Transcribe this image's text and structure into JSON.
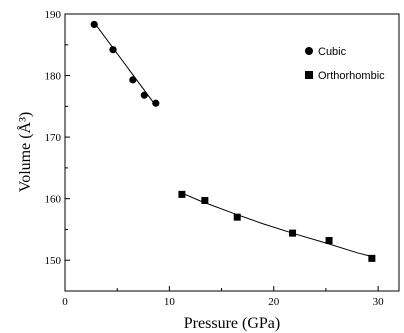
{
  "chart_data": {
    "type": "scatter",
    "xlabel": "Pressure (GPa)",
    "ylabel": "Volume (Å³)",
    "xlim": [
      0,
      32
    ],
    "ylim": [
      145,
      190
    ],
    "xticks": [
      0,
      10,
      20,
      30
    ],
    "yticks": [
      150,
      160,
      170,
      180,
      190
    ],
    "grid": false,
    "legend_position": "top-right",
    "series": [
      {
        "name": "Cubic",
        "marker": "circle",
        "x": [
          2.8,
          4.6,
          6.5,
          7.6,
          8.7
        ],
        "y": [
          188.3,
          184.2,
          179.3,
          176.8,
          175.5
        ],
        "fit_x": [
          2.8,
          8.7
        ],
        "fit_y": [
          188.6,
          175.1
        ]
      },
      {
        "name": "Orthorhombic",
        "marker": "square",
        "x": [
          11.2,
          13.4,
          16.5,
          21.8,
          25.3,
          29.4
        ],
        "y": [
          160.7,
          159.7,
          157.0,
          154.4,
          153.2,
          150.3
        ],
        "fit_x": [
          11.2,
          13.0,
          16.0,
          19.0,
          22.0,
          25.0,
          28.0,
          29.4
        ],
        "fit_y": [
          160.9,
          159.6,
          157.7,
          155.9,
          154.3,
          152.8,
          151.2,
          150.6
        ]
      }
    ]
  }
}
